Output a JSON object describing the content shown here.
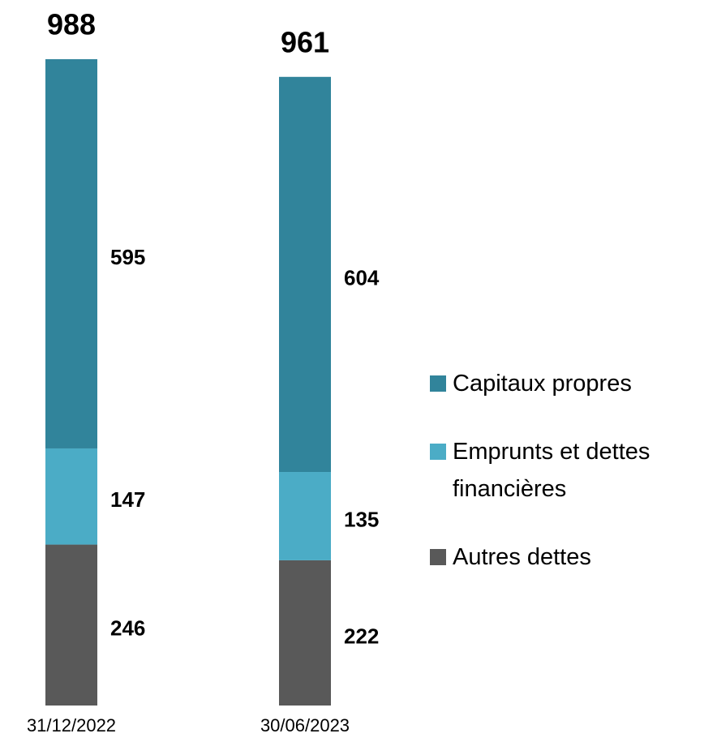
{
  "chart_data": {
    "type": "stacked_bar",
    "categories": [
      "31/12/2022",
      "30/06/2023"
    ],
    "totals": [
      988,
      961
    ],
    "series": [
      {
        "name": "Capitaux propres",
        "color": "#31849b",
        "values": [
          595,
          604
        ]
      },
      {
        "name": "Emprunts et dettes financières",
        "color": "#4bacc6",
        "values": [
          147,
          135
        ]
      },
      {
        "name": "Autres dettes",
        "color": "#595959",
        "values": [
          246,
          222
        ]
      }
    ]
  }
}
